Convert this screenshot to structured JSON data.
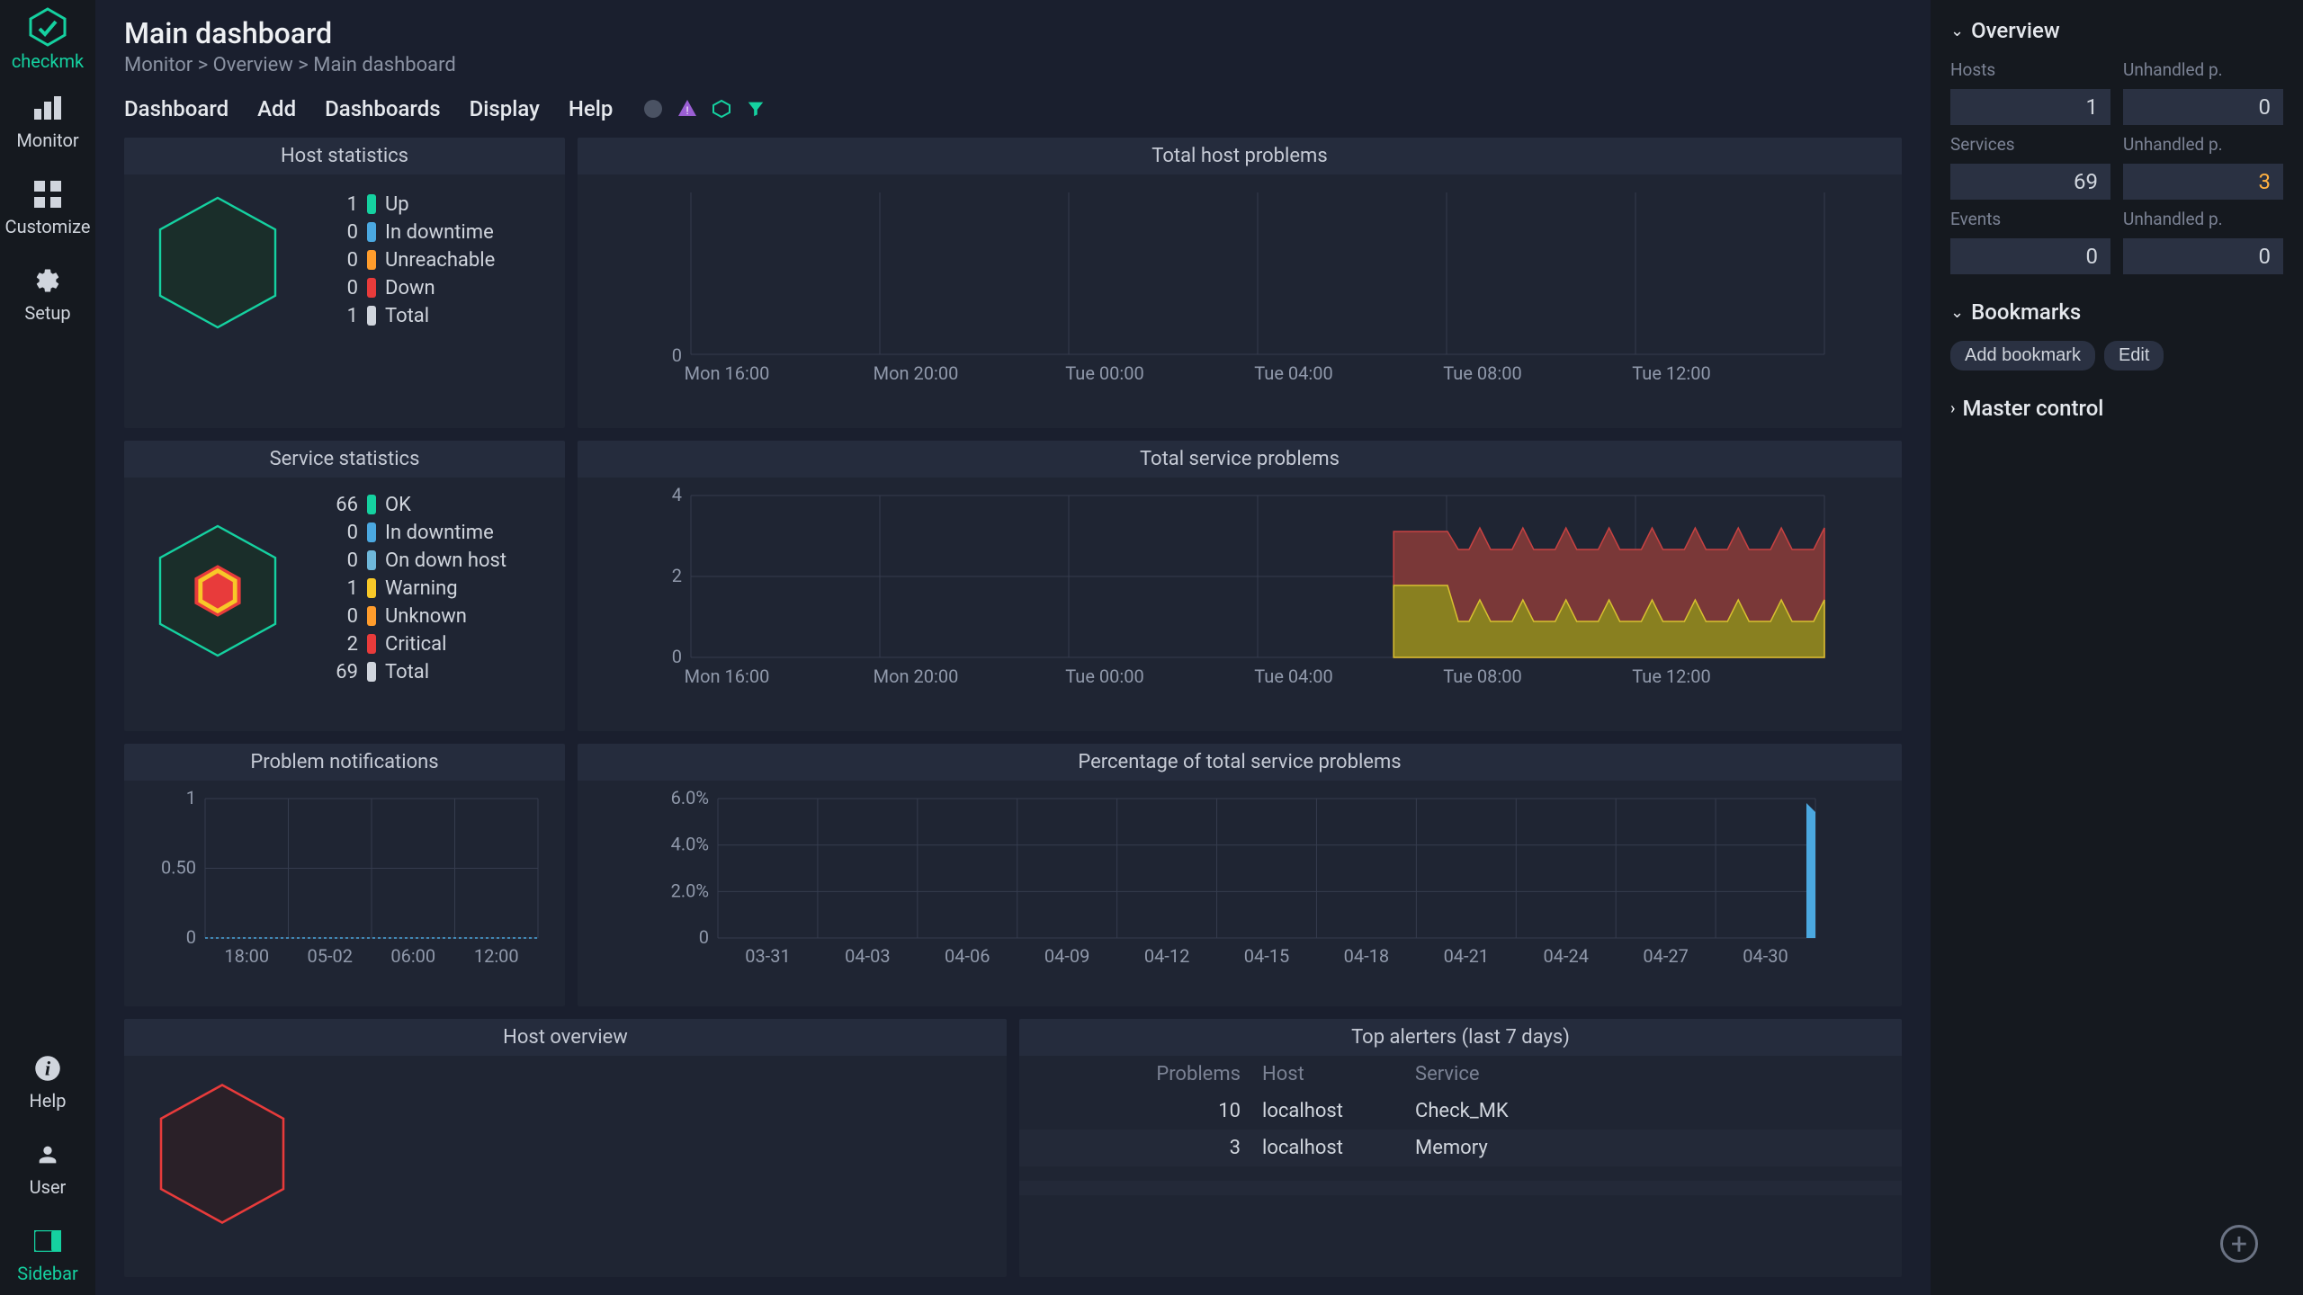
{
  "brand": "checkmk",
  "nav": {
    "monitor": "Monitor",
    "customize": "Customize",
    "setup": "Setup",
    "help": "Help",
    "user": "User",
    "sidebar": "Sidebar"
  },
  "header": {
    "title": "Main dashboard",
    "breadcrumb": [
      "Monitor",
      "Overview",
      "Main dashboard"
    ]
  },
  "menubar": [
    "Dashboard",
    "Add",
    "Dashboards",
    "Display",
    "Help"
  ],
  "host_stats": {
    "title": "Host statistics",
    "rows": [
      {
        "count": 1,
        "color": "#15d1a0",
        "label": "Up"
      },
      {
        "count": 0,
        "color": "#4ba8e0",
        "label": "In downtime"
      },
      {
        "count": 0,
        "color": "#ff9c2c",
        "label": "Unreachable"
      },
      {
        "count": 0,
        "color": "#e83b3b",
        "label": "Down"
      },
      {
        "count": 1,
        "color": "#d0d5dd",
        "label": "Total"
      }
    ],
    "hexagon_color": "#15d1a0"
  },
  "service_stats": {
    "title": "Service statistics",
    "rows": [
      {
        "count": 66,
        "color": "#15d1a0",
        "label": "OK"
      },
      {
        "count": 0,
        "color": "#4ba8e0",
        "label": "In downtime"
      },
      {
        "count": 0,
        "color": "#6fb8db",
        "label": "On down host"
      },
      {
        "count": 1,
        "color": "#f8c828",
        "label": "Warning"
      },
      {
        "count": 0,
        "color": "#ff9c2c",
        "label": "Unknown"
      },
      {
        "count": 2,
        "color": "#e83b3b",
        "label": "Critical"
      },
      {
        "count": 69,
        "color": "#d0d5dd",
        "label": "Total"
      }
    ]
  },
  "total_host_problems": {
    "title": "Total host problems",
    "y_tick": "0",
    "x_ticks": [
      "Mon 16:00",
      "Mon 20:00",
      "Tue 00:00",
      "Tue 04:00",
      "Tue 08:00",
      "Tue 12:00"
    ]
  },
  "total_service_problems": {
    "title": "Total service problems",
    "y_ticks": [
      "4",
      "2",
      "0"
    ],
    "x_ticks": [
      "Mon 16:00",
      "Mon 20:00",
      "Tue 00:00",
      "Tue 04:00",
      "Tue 08:00",
      "Tue 12:00"
    ],
    "critical_color": "#c84242",
    "critical_fill": "#7a3838",
    "warning_color": "#d8c030",
    "warning_fill": "#898020"
  },
  "problem_notifications": {
    "title": "Problem notifications",
    "y_ticks": [
      "1",
      "0.50",
      "0"
    ],
    "x_ticks": [
      "18:00",
      "05-02",
      "06:00",
      "12:00"
    ]
  },
  "percentage_problems": {
    "title": "Percentage of total service problems",
    "y_ticks": [
      "6.0%",
      "4.0%",
      "2.0%",
      "0"
    ],
    "x_ticks": [
      "03-31",
      "04-03",
      "04-06",
      "04-09",
      "04-12",
      "04-15",
      "04-18",
      "04-21",
      "04-24",
      "04-27",
      "04-30"
    ],
    "spike_color": "#4ba8e0"
  },
  "host_overview": {
    "title": "Host overview",
    "hexagon_color": "#e83b3b"
  },
  "top_alerters": {
    "title": "Top alerters (last 7 days)",
    "headers": {
      "problems": "Problems",
      "host": "Host",
      "service": "Service"
    },
    "rows": [
      {
        "problems": 10,
        "host": "localhost",
        "service": "Check_MK"
      },
      {
        "problems": 3,
        "host": "localhost",
        "service": "Memory"
      }
    ]
  },
  "overview_panel": {
    "title": "Overview",
    "hosts_label": "Hosts",
    "hosts_value": 1,
    "hosts_unhandled_label": "Unhandled p.",
    "hosts_unhandled_value": 0,
    "services_label": "Services",
    "services_value": 69,
    "services_unhandled_label": "Unhandled p.",
    "services_unhandled_value": 3,
    "events_label": "Events",
    "events_value": 0,
    "events_unhandled_label": "Unhandled p.",
    "events_unhandled_value": 0
  },
  "bookmarks_panel": {
    "title": "Bookmarks",
    "add_label": "Add bookmark",
    "edit_label": "Edit"
  },
  "master_control_panel": {
    "title": "Master control"
  }
}
